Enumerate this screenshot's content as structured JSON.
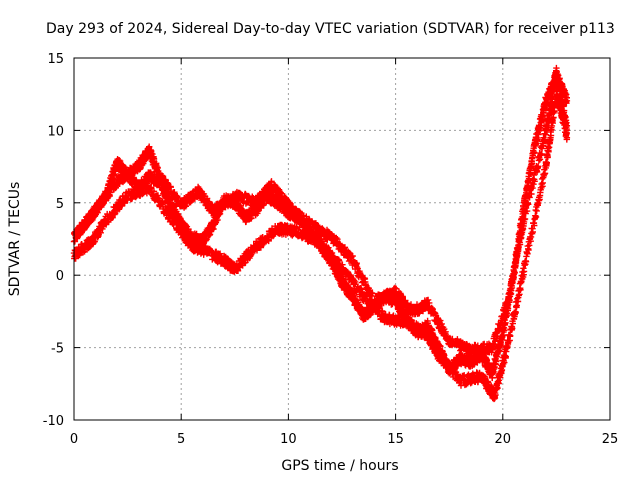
{
  "chart_data": {
    "type": "scatter",
    "title": "Day 293 of 2024, Sidereal Day-to-day VTEC variation (SDTVAR) for receiver p113",
    "xlabel": "GPS time / hours",
    "ylabel": "SDTVAR / TECUs",
    "xlim": [
      0,
      25
    ],
    "ylim": [
      -10,
      15
    ],
    "x_ticks": [
      "0",
      "5",
      "10",
      "15",
      "20",
      "25"
    ],
    "y_ticks": [
      "-10",
      "-5",
      "0",
      "5",
      "10",
      "15"
    ],
    "grid": true,
    "marker": "+",
    "color": "#ff0000",
    "series": [
      {
        "name": "main",
        "x": [
          0,
          0.5,
          1,
          1.5,
          2,
          2.5,
          3,
          3.5,
          4,
          4.5,
          5,
          5.5,
          6,
          6.5,
          7,
          7.5,
          8,
          8.5,
          9,
          9.5,
          10,
          10.5,
          11,
          11.5,
          12,
          12.5,
          13,
          13.5,
          14,
          14.5,
          15,
          15.5,
          16,
          16.5,
          17,
          17.5,
          18,
          18.5,
          19,
          19.5,
          20,
          20.5,
          21,
          21.5,
          22,
          22.5,
          23
        ],
        "y": [
          2.6,
          3.5,
          4.5,
          5.5,
          7.8,
          7.0,
          6.0,
          6.8,
          6.5,
          4.8,
          3.5,
          2.6,
          2.4,
          3.5,
          5.2,
          5.0,
          4.0,
          4.5,
          5.5,
          5.0,
          4.3,
          4.0,
          3.0,
          2.0,
          1.0,
          -0.5,
          -1.5,
          -2.8,
          -2.2,
          -1.5,
          -1.8,
          -3.0,
          -4.0,
          -3.5,
          -5.0,
          -6.5,
          -5.8,
          -6.0,
          -5.5,
          -6.8,
          -4.0,
          0.0,
          5.0,
          9.0,
          12.0,
          13.8,
          12.0
        ]
      },
      {
        "name": "upper",
        "x": [
          0.3,
          1,
          2,
          3,
          3.5,
          4,
          5,
          5.8,
          6.5,
          7.5,
          8.5,
          9.2,
          10,
          11,
          12,
          13,
          14,
          15,
          15.8,
          16.5,
          17.5,
          18.5,
          19.5,
          20.3,
          21,
          22,
          22.5,
          23
        ],
        "y": [
          3.2,
          4.4,
          6.5,
          7.5,
          8.6,
          6.8,
          4.8,
          5.8,
          4.4,
          5.5,
          5.0,
          6.2,
          4.8,
          3.5,
          2.6,
          1.0,
          -1.8,
          -1.2,
          -2.5,
          -2.0,
          -4.5,
          -5.2,
          -5.0,
          -1.5,
          4.0,
          9.8,
          14.0,
          10.0
        ]
      },
      {
        "name": "lower",
        "x": [
          0,
          0.8,
          1.5,
          2.5,
          3.5,
          4.5,
          5.5,
          6,
          7,
          7.5,
          8.5,
          9.5,
          10.5,
          11.5,
          12.5,
          13.5,
          14.5,
          15.5,
          16.5,
          17,
          18,
          19,
          19.6,
          20.2,
          21,
          22,
          22.5,
          23
        ],
        "y": [
          1.4,
          2.3,
          3.8,
          5.5,
          6.0,
          4.0,
          2.0,
          1.8,
          1.0,
          0.4,
          2.0,
          3.2,
          3.0,
          2.2,
          0.5,
          -1.5,
          -3.0,
          -3.2,
          -4.2,
          -5.5,
          -7.3,
          -7.0,
          -8.3,
          -5.0,
          0.5,
          7.5,
          12.5,
          9.6
        ]
      }
    ]
  }
}
